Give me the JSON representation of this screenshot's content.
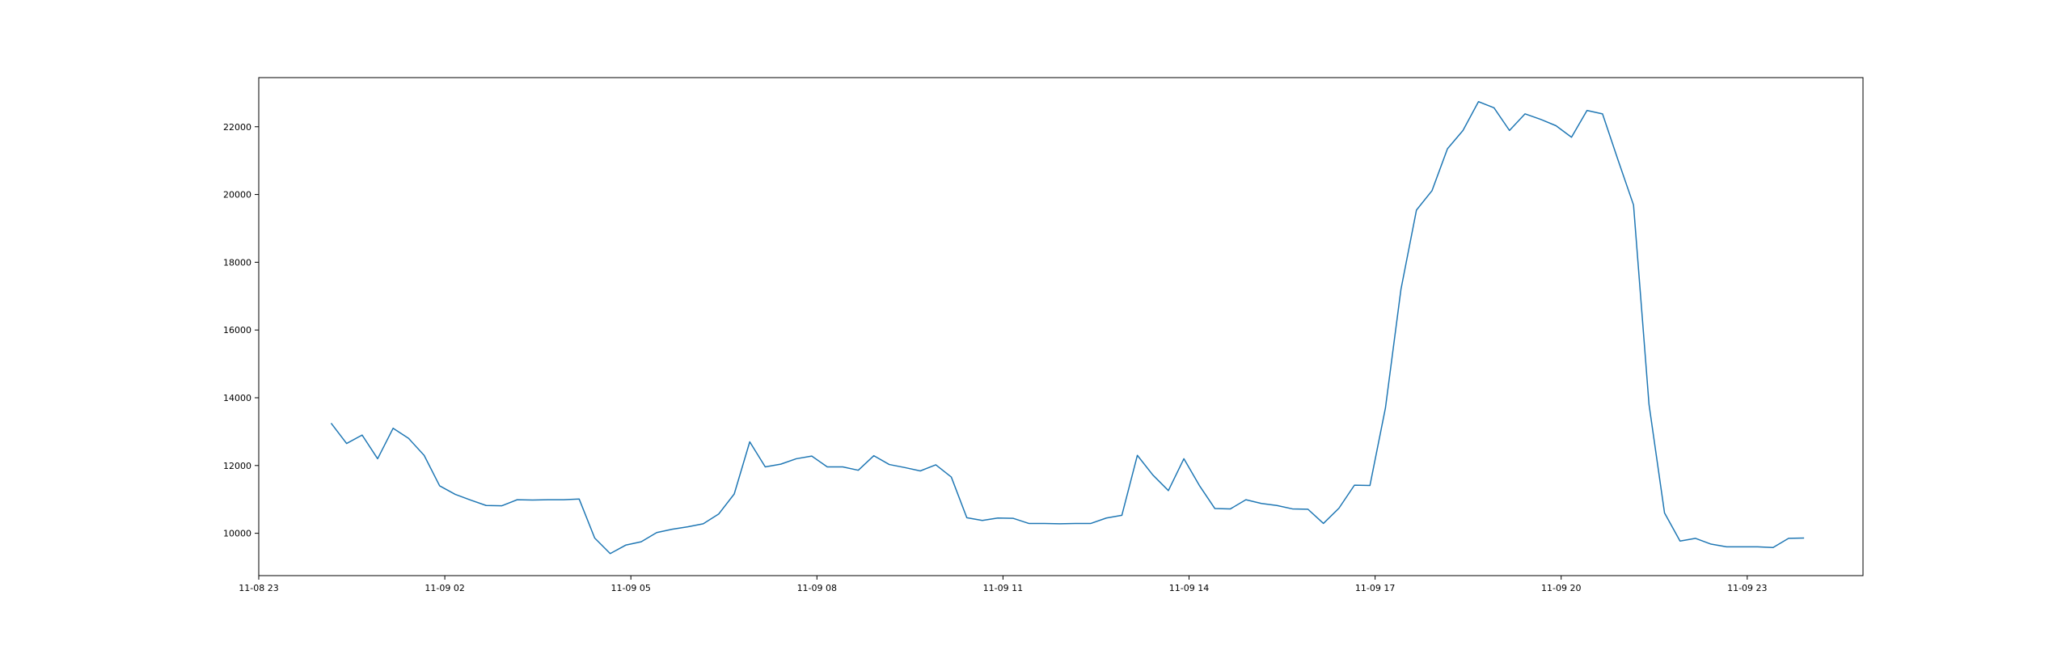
{
  "chart_data": {
    "type": "line",
    "title": "",
    "xlabel": "",
    "ylabel": "",
    "grid": false,
    "legend": "none",
    "line_color": "#1f77b4",
    "x_tick_labels": [
      "11-08 23",
      "11-09 02",
      "11-09 05",
      "11-09 08",
      "11-09 11",
      "11-09 14",
      "11-09 17",
      "11-09 20",
      "11-09 23"
    ],
    "y_tick_labels": [
      "10000",
      "12000",
      "14000",
      "16000",
      "18000",
      "20000",
      "22000"
    ],
    "xlim": [
      "2024-11-08 23:00",
      "2024-11-10 00:52"
    ],
    "ylim": [
      8750,
      23450
    ],
    "series": [
      {
        "name": "",
        "x": [
          "2024-11-09 00:10",
          "2024-11-09 00:25",
          "2024-11-09 00:40",
          "2024-11-09 00:55",
          "2024-11-09 01:10",
          "2024-11-09 01:25",
          "2024-11-09 01:40",
          "2024-11-09 01:55",
          "2024-11-09 02:10",
          "2024-11-09 02:25",
          "2024-11-09 02:40",
          "2024-11-09 02:55",
          "2024-11-09 03:10",
          "2024-11-09 03:25",
          "2024-11-09 03:40",
          "2024-11-09 03:55",
          "2024-11-09 04:10",
          "2024-11-09 04:25",
          "2024-11-09 04:40",
          "2024-11-09 04:55",
          "2024-11-09 05:10",
          "2024-11-09 05:25",
          "2024-11-09 05:40",
          "2024-11-09 05:55",
          "2024-11-09 06:10",
          "2024-11-09 06:25",
          "2024-11-09 06:40",
          "2024-11-09 06:55",
          "2024-11-09 07:10",
          "2024-11-09 07:25",
          "2024-11-09 07:40",
          "2024-11-09 07:55",
          "2024-11-09 08:10",
          "2024-11-09 08:25",
          "2024-11-09 08:40",
          "2024-11-09 08:55",
          "2024-11-09 09:10",
          "2024-11-09 09:25",
          "2024-11-09 09:40",
          "2024-11-09 09:55",
          "2024-11-09 10:10",
          "2024-11-09 10:25",
          "2024-11-09 10:40",
          "2024-11-09 10:55",
          "2024-11-09 11:10",
          "2024-11-09 11:25",
          "2024-11-09 11:40",
          "2024-11-09 11:55",
          "2024-11-09 12:10",
          "2024-11-09 12:25",
          "2024-11-09 12:40",
          "2024-11-09 12:55",
          "2024-11-09 13:10",
          "2024-11-09 13:25",
          "2024-11-09 13:40",
          "2024-11-09 13:55",
          "2024-11-09 14:10",
          "2024-11-09 14:25",
          "2024-11-09 14:40",
          "2024-11-09 14:55",
          "2024-11-09 15:10",
          "2024-11-09 15:25",
          "2024-11-09 15:40",
          "2024-11-09 15:55",
          "2024-11-09 16:10",
          "2024-11-09 16:25",
          "2024-11-09 16:40",
          "2024-11-09 16:55",
          "2024-11-09 17:10",
          "2024-11-09 17:25",
          "2024-11-09 17:40",
          "2024-11-09 17:55",
          "2024-11-09 18:10",
          "2024-11-09 18:25",
          "2024-11-09 18:40",
          "2024-11-09 18:55",
          "2024-11-09 19:10",
          "2024-11-09 19:25",
          "2024-11-09 19:40",
          "2024-11-09 19:55",
          "2024-11-09 20:10",
          "2024-11-09 20:25",
          "2024-11-09 20:40",
          "2024-11-09 20:55",
          "2024-11-09 21:10",
          "2024-11-09 21:25",
          "2024-11-09 21:40",
          "2024-11-09 21:55",
          "2024-11-09 22:10",
          "2024-11-09 22:25",
          "2024-11-09 22:40",
          "2024-11-09 22:55",
          "2024-11-09 23:10",
          "2024-11-09 23:25",
          "2024-11-09 23:40",
          "2024-11-09 23:55"
        ],
        "y": [
          13250,
          12650,
          12900,
          12200,
          13100,
          12800,
          12300,
          11400,
          11150,
          10980,
          10820,
          10810,
          10990,
          10980,
          10990,
          10990,
          11010,
          9860,
          9400,
          9650,
          9750,
          10020,
          10120,
          10190,
          10280,
          10570,
          11160,
          12700,
          11960,
          12040,
          12200,
          12280,
          11960,
          11960,
          11860,
          12290,
          12030,
          11940,
          11840,
          12020,
          11660,
          10460,
          10380,
          10450,
          10440,
          10290,
          10290,
          10280,
          10290,
          10290,
          10450,
          10530,
          12300,
          11720,
          11260,
          12200,
          11410,
          10730,
          10720,
          10990,
          10880,
          10820,
          10720,
          10710,
          10290,
          10740,
          11420,
          11410,
          13700,
          17200,
          19540,
          20110,
          21350,
          21890,
          22740,
          22560,
          21890,
          22380,
          22220,
          22030,
          21690,
          22480,
          22380,
          21020,
          19690,
          13800,
          10600,
          9770,
          9850,
          9680,
          9600,
          9600,
          9600,
          9580,
          9850,
          9860
        ]
      }
    ]
  }
}
